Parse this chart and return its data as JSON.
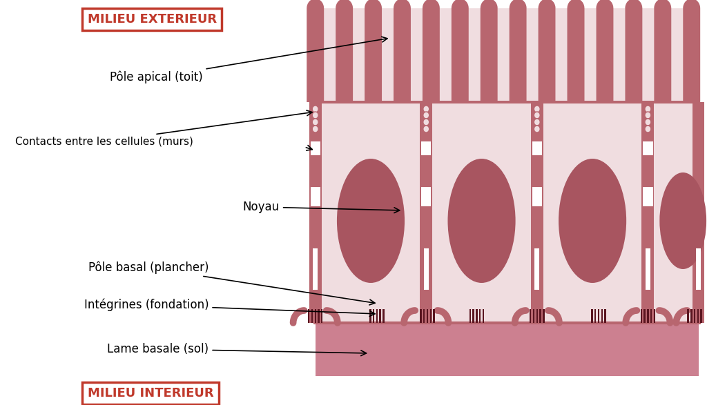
{
  "bg_color": "#ffffff",
  "cell_fill": "#f0dde0",
  "cell_wall_fill": "#b8666f",
  "cell_wall_outline": "#a85560",
  "nucleus_fill": "#a85560",
  "basal_lamina_fill": "#cc8090",
  "integrin_fill": "#5a1520",
  "mv_fill": "#b8666f",
  "red_label": "#c0392b",
  "text_color": "#1a1a1a",
  "white": "#ffffff",
  "label_milieu_ext": "MILIEU EXTERIEUR",
  "label_milieu_int": "MILIEU INTERIEUR",
  "label_pole_apical": "Pôle apical (toit)",
  "label_contacts": "Contacts entre les cellules (murs)",
  "label_noyau": "Noyau",
  "label_pole_basal": "Pôle basal (plancher)",
  "label_integrines": "Intégrines (fondation)",
  "label_lame_basale": "Lame basale (sol)"
}
